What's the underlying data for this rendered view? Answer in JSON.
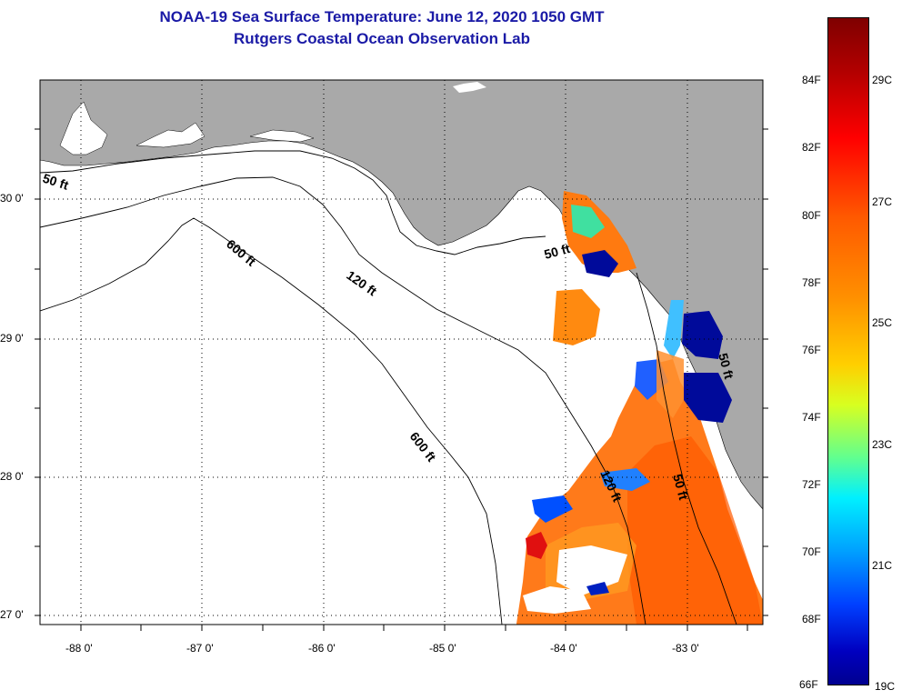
{
  "title": {
    "line1": "NOAA-19 Sea Surface Temperature:  June 12, 2020 1050 GMT",
    "line2": "Rutgers Coastal Ocean Observation Lab"
  },
  "map": {
    "lat_labels": [
      "30 0'",
      "29 0'",
      "28 0'",
      "27 0'"
    ],
    "lon_labels": [
      "-88 0'",
      "-87 0'",
      "-86 0'",
      "-85 0'",
      "-84 0'",
      "-83 0'"
    ],
    "contour_labels": [
      "50 ft",
      "600 ft",
      "120 ft",
      "600 ft",
      "50 ft",
      "120 ft",
      "50 ft",
      "50 ft"
    ],
    "land_color": "#a9a9a9",
    "ocean_color": "#ffffff"
  },
  "colorbar": {
    "fahrenheit_labels": [
      "84F",
      "82F",
      "80F",
      "78F",
      "76F",
      "74F",
      "72F",
      "70F",
      "68F",
      "66F"
    ],
    "celsius_labels": [
      "29C",
      "27C",
      "25C",
      "23C",
      "21C",
      "19C"
    ],
    "range_f": [
      66,
      86
    ],
    "range_c": [
      19,
      30
    ]
  }
}
